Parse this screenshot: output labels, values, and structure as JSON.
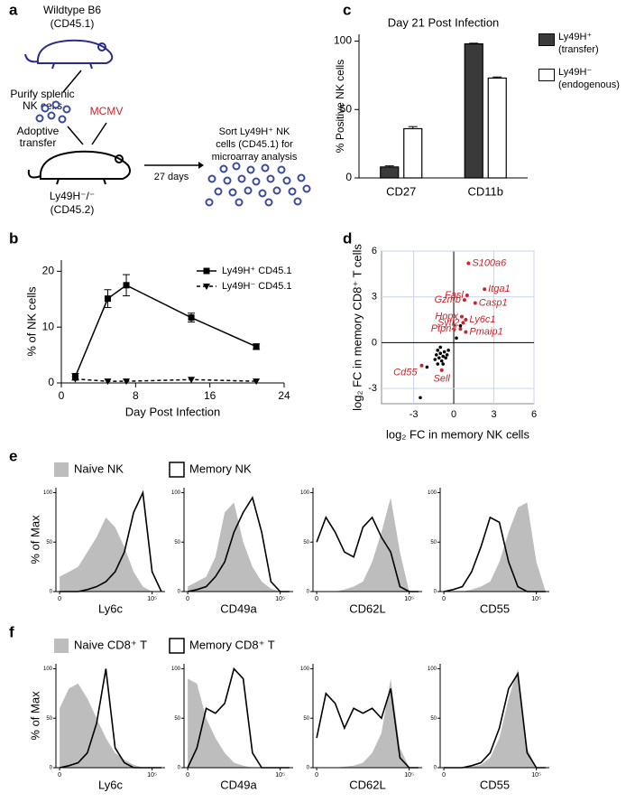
{
  "diagram": {
    "label": "a",
    "donor": [
      "Wildtype B6",
      "(CD45.1)"
    ],
    "purify": [
      "Purify splenic",
      "NK cells"
    ],
    "virus": "MCMV",
    "transfer": [
      "Adoptive",
      "transfer"
    ],
    "recipient": [
      "Ly49H⁻/⁻",
      "(CD45.2)"
    ],
    "time": "27 days",
    "sort": [
      "Sort Ly49H⁺ NK",
      "cells (CD45.1) for",
      "microarray analysis"
    ]
  },
  "chart_data": [
    {
      "type": "bar",
      "label": "c",
      "title": "Day 21 Post Infection",
      "ylabel": "% Positive NK cells",
      "categories": [
        "CD27",
        "CD11b"
      ],
      "series": [
        {
          "name": "Ly49H⁺ (transfer)",
          "color": "#3a3a3a",
          "values": [
            8,
            98
          ],
          "errors": [
            0.8,
            0.5
          ]
        },
        {
          "name": "Ly49H⁻ (endogenous)",
          "color": "#ffffff",
          "values": [
            36,
            73
          ],
          "errors": [
            1.5,
            0.8
          ]
        }
      ],
      "ylim": [
        0,
        105
      ],
      "yticks": [
        0,
        50,
        100
      ]
    },
    {
      "type": "line",
      "label": "b",
      "xlabel": "Day Post Infection",
      "ylabel": "% of NK cells",
      "x": [
        1.5,
        5,
        7,
        14,
        21
      ],
      "series": [
        {
          "name": "Ly49H⁺ CD45.1",
          "color": "#000000",
          "style": "solid",
          "marker": "square",
          "values": [
            1.1,
            15.1,
            17.5,
            11.7,
            6.5
          ],
          "errors": [
            0.6,
            1.6,
            1.9,
            0.8,
            0.5
          ]
        },
        {
          "name": "Ly49H⁻ CD45.1",
          "color": "#000000",
          "style": "dashed",
          "marker": "triangle-down",
          "values": [
            0.7,
            0.3,
            0.3,
            0.6,
            0.3
          ]
        }
      ],
      "xlim": [
        0,
        24
      ],
      "xticks": [
        0,
        8,
        16,
        24
      ],
      "ylim": [
        0,
        22
      ],
      "yticks": [
        0,
        10,
        20
      ]
    },
    {
      "type": "scatter",
      "label": "d",
      "xlabel": "log₂ FC in memory NK cells",
      "ylabel": "log₂ FC in memory CD8⁺ T cells",
      "xlim": [
        -5.4,
        6
      ],
      "xticks": [
        -3,
        0,
        3,
        6
      ],
      "ylim": [
        -4,
        6
      ],
      "yticks": [
        -3,
        0,
        3,
        6
      ],
      "grid": true,
      "points": {
        "color": "#000000",
        "x": [
          -1.2,
          -1,
          -0.8,
          -1.1,
          -0.7,
          -0.9,
          -1.3,
          -0.6,
          -1,
          -0.5,
          -1.4,
          -0.8,
          -1.2,
          -0.4,
          -2.5,
          -2,
          0.2,
          0.5
        ],
        "y": [
          -0.5,
          -0.7,
          -0.9,
          -1,
          -0.6,
          -1.2,
          -0.8,
          -1,
          -0.3,
          -0.8,
          -1.1,
          -1.4,
          -1.4,
          -0.5,
          -3.6,
          -1.6,
          0.3,
          1.1
        ]
      },
      "genes": {
        "color": "#cc2229",
        "labels": [
          "S100a6",
          "Fasl",
          "Itga1",
          "Gzmb",
          "Casp1",
          "Hopx",
          "Sytl2",
          "Ly6c1",
          "Ptpn4",
          "Pmaip1",
          "Cd55",
          "Sell"
        ],
        "x": [
          1.1,
          1.0,
          2.3,
          0.8,
          1.6,
          0.6,
          0.7,
          0.9,
          0.5,
          0.9,
          -2.4,
          -0.9
        ],
        "y": [
          5.2,
          3.1,
          3.5,
          2.8,
          2.6,
          1.7,
          1.3,
          1.5,
          0.9,
          0.7,
          -1.5,
          -1.8
        ]
      }
    },
    {
      "type": "histogram-row",
      "label": "e",
      "ylabel": "% of Max",
      "x": [
        0,
        0.5,
        1,
        1.5,
        2,
        2.5,
        3,
        3.5,
        4,
        4.5,
        5,
        5.5
      ],
      "xlim": [
        -0.2,
        5.7
      ],
      "xticks": [
        0,
        {
          "value": 5,
          "label": "10⁵"
        }
      ],
      "ylim": [
        0,
        105
      ],
      "yticks": [
        0,
        50,
        100
      ],
      "series": [
        {
          "name": "Naive NK",
          "color": "#bdbdbd"
        },
        {
          "name": "Memory NK",
          "color": "#000000"
        }
      ],
      "panels": [
        {
          "xlabel": "Ly6c",
          "values": [
            [
              15,
              20,
              25,
              40,
              55,
              75,
              65,
              45,
              20,
              5,
              0,
              0
            ],
            [
              0,
              0,
              0,
              2,
              5,
              10,
              20,
              40,
              80,
              100,
              20,
              0
            ]
          ]
        },
        {
          "xlabel": "CD49a",
          "values": [
            [
              5,
              10,
              15,
              35,
              80,
              90,
              50,
              25,
              10,
              3,
              0,
              0
            ],
            [
              0,
              2,
              5,
              15,
              30,
              60,
              80,
              95,
              60,
              10,
              0,
              0
            ]
          ]
        },
        {
          "xlabel": "CD62L",
          "values": [
            [
              0,
              0,
              0,
              2,
              5,
              10,
              30,
              60,
              95,
              40,
              0,
              0
            ],
            [
              50,
              75,
              60,
              40,
              35,
              65,
              75,
              55,
              40,
              5,
              0,
              0
            ]
          ]
        },
        {
          "xlabel": "CD55",
          "values": [
            [
              0,
              0,
              0,
              2,
              5,
              10,
              30,
              60,
              85,
              90,
              30,
              0
            ],
            [
              0,
              2,
              5,
              20,
              45,
              75,
              70,
              30,
              5,
              0,
              0,
              0
            ]
          ]
        }
      ]
    },
    {
      "type": "histogram-row",
      "label": "f",
      "ylabel": "% of Max",
      "x": [
        0,
        0.5,
        1,
        1.5,
        2,
        2.5,
        3,
        3.5,
        4,
        4.5,
        5,
        5.5
      ],
      "xlim": [
        -0.2,
        5.7
      ],
      "xticks": [
        0,
        {
          "value": 5,
          "label": "10⁵"
        }
      ],
      "ylim": [
        0,
        105
      ],
      "yticks": [
        0,
        50,
        100
      ],
      "series": [
        {
          "name": "Naive CD8⁺ T",
          "color": "#bdbdbd"
        },
        {
          "name": "Memory CD8⁺ T",
          "color": "#000000"
        }
      ],
      "panels": [
        {
          "xlabel": "Ly6c",
          "values": [
            [
              60,
              80,
              85,
              70,
              50,
              30,
              15,
              8,
              3,
              0,
              0,
              0
            ],
            [
              0,
              2,
              5,
              15,
              45,
              100,
              20,
              5,
              0,
              0,
              0,
              0
            ]
          ]
        },
        {
          "xlabel": "CD49a",
          "values": [
            [
              90,
              85,
              50,
              30,
              15,
              5,
              2,
              0,
              0,
              0,
              0,
              0
            ],
            [
              0,
              20,
              60,
              55,
              65,
              100,
              90,
              15,
              0,
              0,
              0,
              0
            ]
          ]
        },
        {
          "xlabel": "CD62L",
          "values": [
            [
              0,
              0,
              0,
              1,
              2,
              5,
              15,
              35,
              90,
              20,
              0,
              0
            ],
            [
              30,
              75,
              65,
              40,
              60,
              55,
              60,
              50,
              80,
              10,
              0,
              0
            ]
          ]
        },
        {
          "xlabel": "CD55",
          "values": [
            [
              0,
              0,
              0,
              1,
              3,
              10,
              30,
              70,
              100,
              20,
              0,
              0
            ],
            [
              0,
              0,
              0,
              2,
              5,
              15,
              40,
              80,
              95,
              15,
              0,
              0
            ]
          ]
        }
      ]
    }
  ]
}
